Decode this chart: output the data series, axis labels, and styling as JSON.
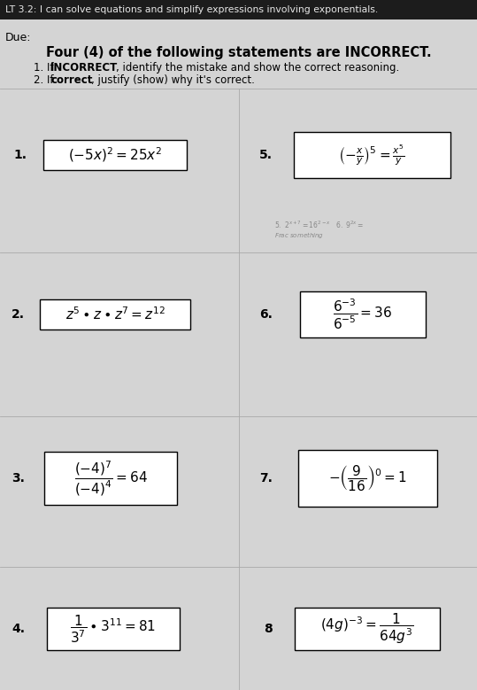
{
  "title_bar_text": "LT 3.2: I can solve equations and simplify expressions involving exponentials.",
  "due_text": "Due:",
  "heading": "Four (4) of the following statements are INCORRECT.",
  "instr1_pre": "1. If ",
  "instr1_bold": "INCORRECT",
  "instr1_post": ", identify the mistake and show the correct reasoning.",
  "instr2_pre": "2. If ",
  "instr2_bold": "correct",
  "instr2_post": ", justify (show) why it's correct.",
  "bg_color": "#c8c8c8",
  "paper_color": "#d4d4d4",
  "title_bar_color": "#1c1c1c",
  "title_text_color": "#e8e8e8",
  "box_facecolor": "#f0f0f0",
  "faint_line_color": "#aaaaaa",
  "faint_text_color": "#888888"
}
